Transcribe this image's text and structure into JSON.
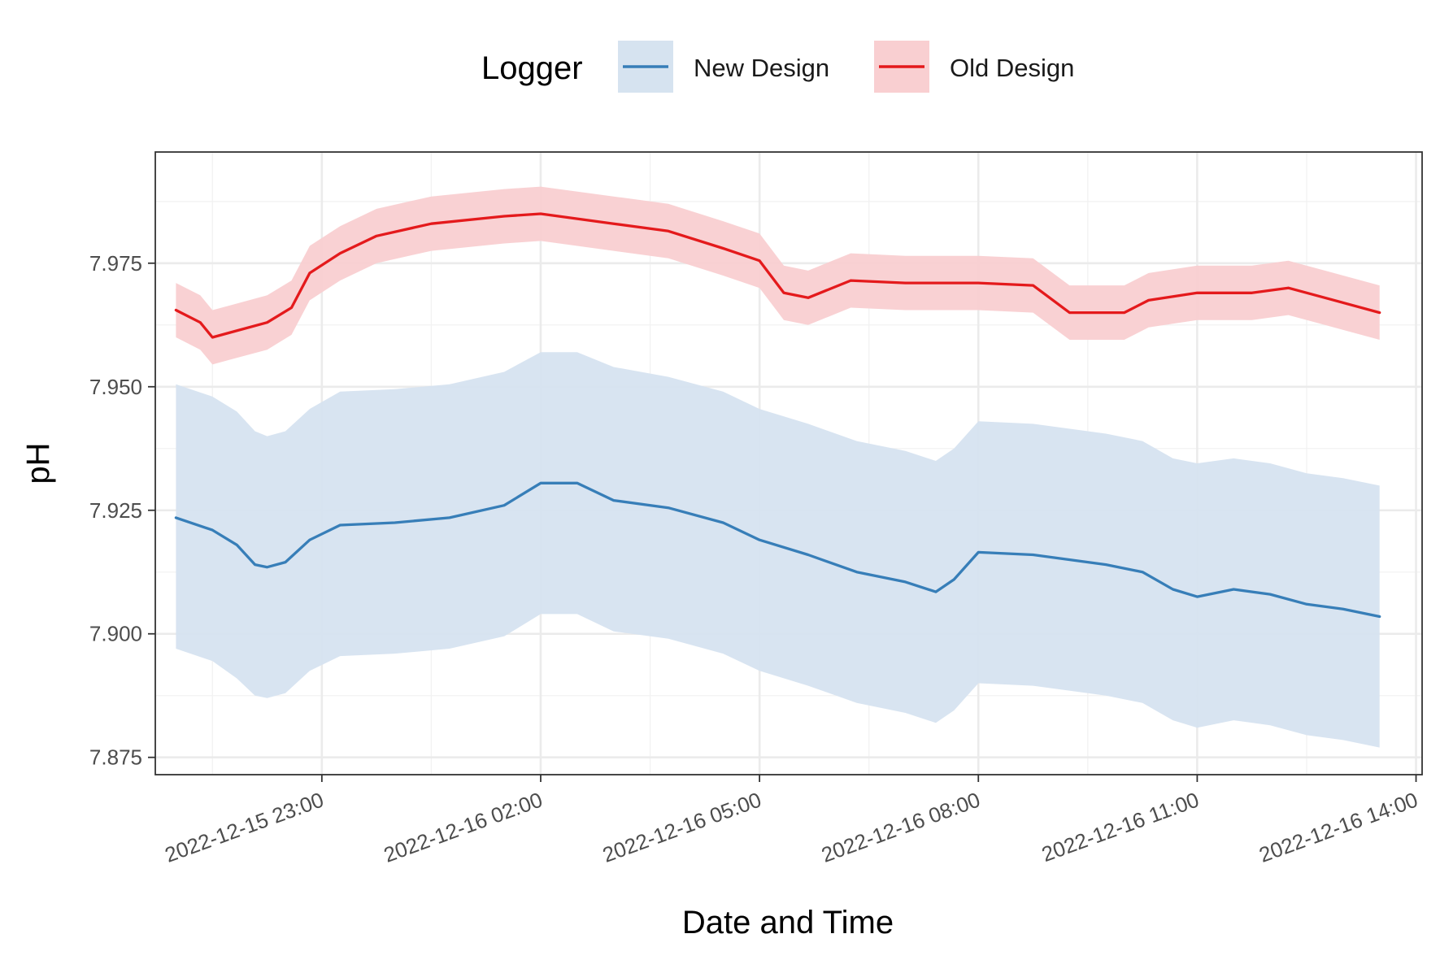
{
  "chart_data": {
    "type": "line",
    "title": "",
    "xlabel": "Date and Time",
    "ylabel": "pH",
    "x_range": [
      "2022-12-15 20:43",
      "2022-12-16 14:05"
    ],
    "ylim": [
      7.8715,
      7.9975
    ],
    "y_ticks": [
      {
        "value": 7.875,
        "label": "7.875"
      },
      {
        "value": 7.9,
        "label": "7.900"
      },
      {
        "value": 7.925,
        "label": "7.925"
      },
      {
        "value": 7.95,
        "label": "7.950"
      },
      {
        "value": 7.975,
        "label": "7.975"
      }
    ],
    "x_ticks": [
      {
        "value": "2022-12-15 23:00",
        "label": "2022-12-15 23:00"
      },
      {
        "value": "2022-12-16 02:00",
        "label": "2022-12-16 02:00"
      },
      {
        "value": "2022-12-16 05:00",
        "label": "2022-12-16 05:00"
      },
      {
        "value": "2022-12-16 08:00",
        "label": "2022-12-16 08:00"
      },
      {
        "value": "2022-12-16 11:00",
        "label": "2022-12-16 11:00"
      },
      {
        "value": "2022-12-16 14:00",
        "label": "2022-12-16 14:00"
      }
    ],
    "grid": true,
    "legend": {
      "title": "Logger",
      "position": "top"
    },
    "series": [
      {
        "name": "New Design",
        "color": "#377EB8",
        "ribbon_color": "#D6E3F0",
        "points": [
          [
            "2022-12-15 21:00",
            7.9235,
            7.897,
            7.9505
          ],
          [
            "2022-12-15 21:30",
            7.921,
            7.8945,
            7.948
          ],
          [
            "2022-12-15 21:50",
            7.918,
            7.891,
            7.945
          ],
          [
            "2022-12-15 22:05",
            7.914,
            7.8875,
            7.941
          ],
          [
            "2022-12-15 22:15",
            7.9135,
            7.887,
            7.94
          ],
          [
            "2022-12-15 22:30",
            7.9145,
            7.888,
            7.941
          ],
          [
            "2022-12-15 22:50",
            7.919,
            7.8925,
            7.9455
          ],
          [
            "2022-12-15 23:15",
            7.922,
            7.8955,
            7.949
          ],
          [
            "2022-12-16 00:00",
            7.9225,
            7.896,
            7.9495
          ],
          [
            "2022-12-16 00:45",
            7.9235,
            7.897,
            7.9505
          ],
          [
            "2022-12-16 01:30",
            7.926,
            7.8995,
            7.953
          ],
          [
            "2022-12-16 02:00",
            7.9305,
            7.904,
            7.957
          ],
          [
            "2022-12-16 02:30",
            7.9305,
            7.904,
            7.957
          ],
          [
            "2022-12-16 03:00",
            7.927,
            7.9005,
            7.954
          ],
          [
            "2022-12-16 03:45",
            7.9255,
            7.899,
            7.952
          ],
          [
            "2022-12-16 04:30",
            7.9225,
            7.896,
            7.949
          ],
          [
            "2022-12-16 05:00",
            7.919,
            7.8925,
            7.9455
          ],
          [
            "2022-12-16 05:40",
            7.916,
            7.8895,
            7.9425
          ],
          [
            "2022-12-16 06:20",
            7.9125,
            7.886,
            7.939
          ],
          [
            "2022-12-16 07:00",
            7.9105,
            7.884,
            7.937
          ],
          [
            "2022-12-16 07:25",
            7.9085,
            7.882,
            7.935
          ],
          [
            "2022-12-16 07:40",
            7.911,
            7.8845,
            7.9375
          ],
          [
            "2022-12-16 08:00",
            7.9165,
            7.89,
            7.943
          ],
          [
            "2022-12-16 08:45",
            7.916,
            7.8895,
            7.9425
          ],
          [
            "2022-12-16 09:45",
            7.914,
            7.8875,
            7.9405
          ],
          [
            "2022-12-16 10:15",
            7.9125,
            7.886,
            7.939
          ],
          [
            "2022-12-16 10:40",
            7.909,
            7.8825,
            7.9355
          ],
          [
            "2022-12-16 11:00",
            7.9075,
            7.881,
            7.9345
          ],
          [
            "2022-12-16 11:30",
            7.909,
            7.8825,
            7.9355
          ],
          [
            "2022-12-16 12:00",
            7.908,
            7.8815,
            7.9345
          ],
          [
            "2022-12-16 12:30",
            7.906,
            7.8795,
            7.9325
          ],
          [
            "2022-12-16 13:00",
            7.905,
            7.8785,
            7.9315
          ],
          [
            "2022-12-16 13:30",
            7.9035,
            7.877,
            7.93
          ]
        ]
      },
      {
        "name": "Old Design",
        "color": "#E41A1C",
        "ribbon_color": "#F9CFD1",
        "points": [
          [
            "2022-12-15 21:00",
            7.9655,
            7.96,
            7.971
          ],
          [
            "2022-12-15 21:20",
            7.963,
            7.9575,
            7.9685
          ],
          [
            "2022-12-15 21:30",
            7.96,
            7.9545,
            7.9655
          ],
          [
            "2022-12-15 21:45",
            7.961,
            7.9555,
            7.9665
          ],
          [
            "2022-12-15 22:15",
            7.963,
            7.9575,
            7.9685
          ],
          [
            "2022-12-15 22:35",
            7.966,
            7.9605,
            7.9715
          ],
          [
            "2022-12-15 22:50",
            7.973,
            7.9675,
            7.9785
          ],
          [
            "2022-12-15 23:15",
            7.977,
            7.9715,
            7.9825
          ],
          [
            "2022-12-15 23:45",
            7.9805,
            7.975,
            7.986
          ],
          [
            "2022-12-16 00:30",
            7.983,
            7.9775,
            7.9885
          ],
          [
            "2022-12-16 01:30",
            7.9845,
            7.979,
            7.99
          ],
          [
            "2022-12-16 02:00",
            7.985,
            7.9795,
            7.9905
          ],
          [
            "2022-12-16 03:00",
            7.983,
            7.9775,
            7.9885
          ],
          [
            "2022-12-16 03:45",
            7.9815,
            7.976,
            7.987
          ],
          [
            "2022-12-16 04:30",
            7.978,
            7.9725,
            7.9835
          ],
          [
            "2022-12-16 05:00",
            7.9755,
            7.97,
            7.981
          ],
          [
            "2022-12-16 05:20",
            7.969,
            7.9635,
            7.9745
          ],
          [
            "2022-12-16 05:40",
            7.968,
            7.9625,
            7.9735
          ],
          [
            "2022-12-16 06:15",
            7.9715,
            7.966,
            7.977
          ],
          [
            "2022-12-16 07:00",
            7.971,
            7.9655,
            7.9765
          ],
          [
            "2022-12-16 08:00",
            7.971,
            7.9655,
            7.9765
          ],
          [
            "2022-12-16 08:45",
            7.9705,
            7.965,
            7.976
          ],
          [
            "2022-12-16 09:15",
            7.965,
            7.9595,
            7.9705
          ],
          [
            "2022-12-16 10:00",
            7.965,
            7.9595,
            7.9705
          ],
          [
            "2022-12-16 10:20",
            7.9675,
            7.962,
            7.973
          ],
          [
            "2022-12-16 11:00",
            7.969,
            7.9635,
            7.9745
          ],
          [
            "2022-12-16 11:45",
            7.969,
            7.9635,
            7.9745
          ],
          [
            "2022-12-16 12:15",
            7.97,
            7.9645,
            7.9755
          ],
          [
            "2022-12-16 12:45",
            7.968,
            7.9625,
            7.9735
          ],
          [
            "2022-12-16 13:30",
            7.965,
            7.9595,
            7.9705
          ]
        ]
      }
    ]
  }
}
